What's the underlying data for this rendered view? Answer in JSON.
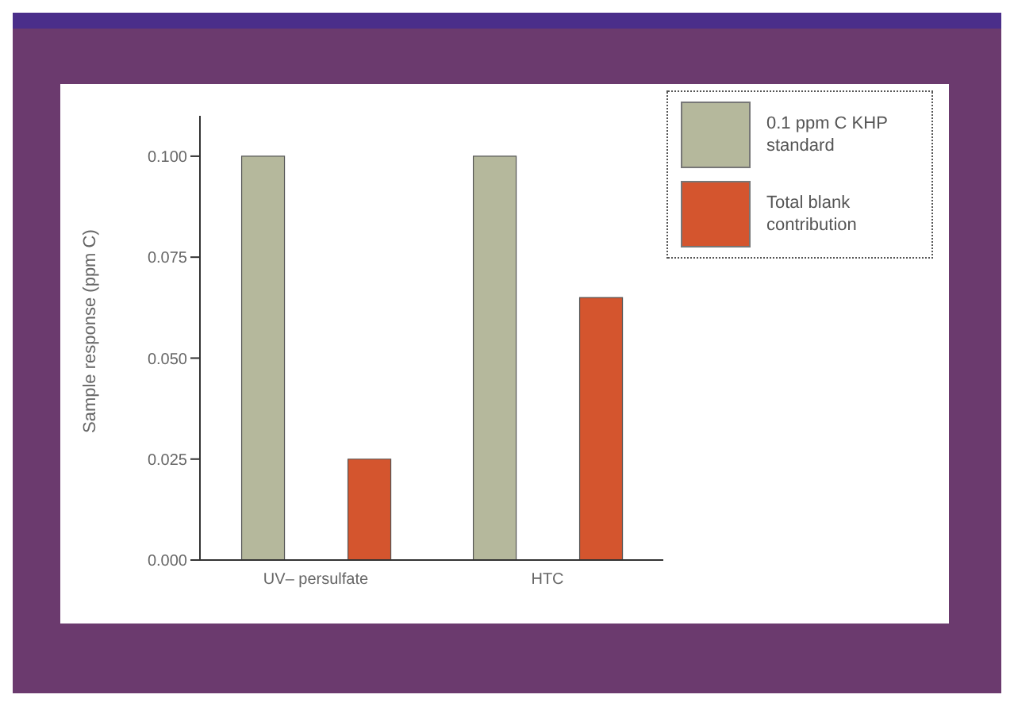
{
  "chart_data": {
    "type": "bar",
    "ylabel": "Sample response (ppm C)",
    "categories": [
      "UV– persulfate",
      "HTC"
    ],
    "series": [
      {
        "name": "0.1 ppm C KHP standard",
        "color": "#b5b89c",
        "values": [
          0.1,
          0.1
        ]
      },
      {
        "name": "Total blank contribution",
        "color": "#d4552e",
        "values": [
          0.025,
          0.065
        ]
      }
    ],
    "ylim": [
      0,
      0.11
    ],
    "yticks": [
      {
        "value": 0,
        "label": "0.000"
      },
      {
        "value": 0.025,
        "label": "0.025"
      },
      {
        "value": 0.05,
        "label": "0.050"
      },
      {
        "value": 0.075,
        "label": "0.075"
      },
      {
        "value": 0.1,
        "label": "0.100"
      }
    ],
    "grid": false,
    "legend": "top right"
  }
}
